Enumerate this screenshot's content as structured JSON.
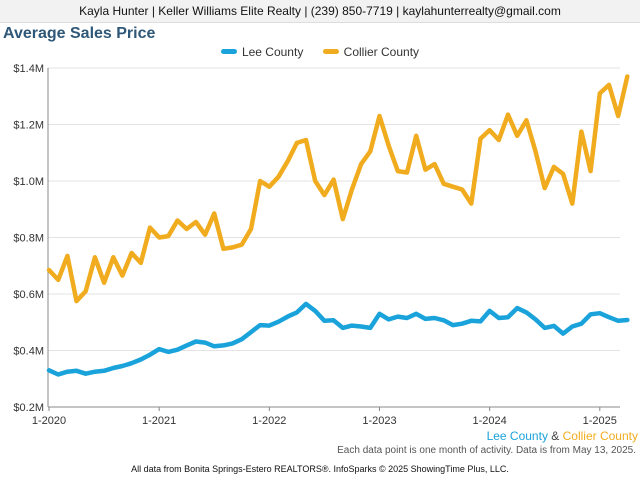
{
  "header": {
    "contact": "Kayla Hunter | Keller Williams Elite Realty | (239) 850-7719 | kaylahunterrealty@gmail.com"
  },
  "colors": {
    "lee": "#1aa3db",
    "collier": "#f0ac1e"
  },
  "bottom_legend": {
    "lee": "Lee County",
    "amp": " & ",
    "collier": "Collier County"
  },
  "note": "Each data point is one month of activity. Data is from May 13, 2025.",
  "footer": "All data from Bonita Springs-Estero REALTORS®. InfoSparks © 2025 ShowingTime Plus, LLC.",
  "chart_data": {
    "type": "line",
    "title": "Average Sales Price",
    "x_start": "2020-01",
    "x": [
      "2020-01",
      "2020-02",
      "2020-03",
      "2020-04",
      "2020-05",
      "2020-06",
      "2020-07",
      "2020-08",
      "2020-09",
      "2020-10",
      "2020-11",
      "2020-12",
      "2021-01",
      "2021-02",
      "2021-03",
      "2021-04",
      "2021-05",
      "2021-06",
      "2021-07",
      "2021-08",
      "2021-09",
      "2021-10",
      "2021-11",
      "2021-12",
      "2022-01",
      "2022-02",
      "2022-03",
      "2022-04",
      "2022-05",
      "2022-06",
      "2022-07",
      "2022-08",
      "2022-09",
      "2022-10",
      "2022-11",
      "2022-12",
      "2023-01",
      "2023-02",
      "2023-03",
      "2023-04",
      "2023-05",
      "2023-06",
      "2023-07",
      "2023-08",
      "2023-09",
      "2023-10",
      "2023-11",
      "2023-12",
      "2024-01",
      "2024-02",
      "2024-03",
      "2024-04",
      "2024-05",
      "2024-06",
      "2024-07",
      "2024-08",
      "2024-09",
      "2024-10",
      "2024-11",
      "2024-12",
      "2025-01",
      "2025-02",
      "2025-03",
      "2025-04"
    ],
    "x_tick_labels": [
      "1-2020",
      "1-2021",
      "1-2022",
      "1-2023",
      "1-2024",
      "1-2025"
    ],
    "y_tick_labels": [
      "$0.2M",
      "$0.4M",
      "$0.6M",
      "$0.8M",
      "$1.0M",
      "$1.2M",
      "$1.4M"
    ],
    "y_ticks": [
      200000,
      400000,
      600000,
      800000,
      1000000,
      1200000,
      1400000
    ],
    "ylim": [
      200000,
      1400000
    ],
    "grid": true,
    "legend_position": "top-center",
    "series": [
      {
        "name": "Lee County",
        "color": "#1aa3db",
        "values": [
          330000,
          315000,
          325000,
          328000,
          318000,
          325000,
          328000,
          338000,
          345000,
          355000,
          368000,
          385000,
          405000,
          395000,
          403000,
          418000,
          432000,
          428000,
          415000,
          418000,
          425000,
          440000,
          465000,
          490000,
          488000,
          502000,
          520000,
          535000,
          565000,
          540000,
          505000,
          507000,
          480000,
          488000,
          485000,
          480000,
          530000,
          510000,
          520000,
          515000,
          530000,
          512000,
          515000,
          507000,
          490000,
          495000,
          505000,
          503000,
          540000,
          515000,
          518000,
          550000,
          535000,
          510000,
          480000,
          487000,
          460000,
          485000,
          495000,
          528000,
          532000,
          518000,
          505000,
          508000
        ]
      },
      {
        "name": "Collier County",
        "color": "#f0ac1e",
        "values": [
          685000,
          650000,
          735000,
          575000,
          610000,
          730000,
          640000,
          730000,
          665000,
          745000,
          710000,
          835000,
          800000,
          805000,
          860000,
          830000,
          855000,
          810000,
          885000,
          760000,
          765000,
          775000,
          830000,
          1000000,
          980000,
          1015000,
          1070000,
          1135000,
          1145000,
          1000000,
          950000,
          1005000,
          865000,
          970000,
          1060000,
          1105000,
          1230000,
          1125000,
          1035000,
          1030000,
          1160000,
          1040000,
          1060000,
          990000,
          980000,
          970000,
          920000,
          1150000,
          1180000,
          1145000,
          1235000,
          1160000,
          1215000,
          1105000,
          975000,
          1050000,
          1025000,
          920000,
          1175000,
          1035000,
          1310000,
          1340000,
          1230000,
          1370000
        ]
      }
    ]
  }
}
